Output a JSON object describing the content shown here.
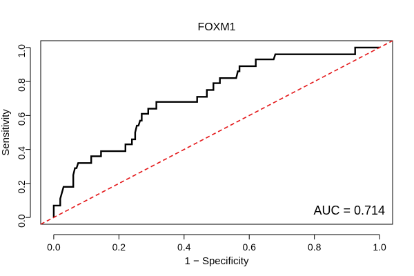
{
  "chart_data": {
    "type": "line",
    "title": "FOXM1",
    "xlabel": "1 − Specificity",
    "ylabel": "Sensitivity",
    "xlim": [
      -0.04,
      1.04
    ],
    "ylim": [
      -0.04,
      1.04
    ],
    "x_ticks": [
      "0.0",
      "0.2",
      "0.4",
      "0.6",
      "0.8",
      "1.0"
    ],
    "y_ticks": [
      "0.0",
      "0.2",
      "0.4",
      "0.6",
      "0.8",
      "1.0"
    ],
    "x_tick_values": [
      0,
      0.2,
      0.4,
      0.6,
      0.8,
      1.0
    ],
    "y_tick_values": [
      0,
      0.2,
      0.4,
      0.6,
      0.8,
      1.0
    ],
    "annotation": "AUC = 0.714",
    "grid": false,
    "series": [
      {
        "color": "#000000",
        "style": "solid",
        "points": [
          [
            0.0,
            0.0
          ],
          [
            0.0,
            0.07
          ],
          [
            0.02,
            0.07
          ],
          [
            0.02,
            0.11
          ],
          [
            0.03,
            0.18
          ],
          [
            0.06,
            0.18
          ],
          [
            0.06,
            0.25
          ],
          [
            0.065,
            0.29
          ],
          [
            0.07,
            0.29
          ],
          [
            0.075,
            0.32
          ],
          [
            0.115,
            0.32
          ],
          [
            0.115,
            0.36
          ],
          [
            0.145,
            0.36
          ],
          [
            0.145,
            0.39
          ],
          [
            0.22,
            0.39
          ],
          [
            0.22,
            0.43
          ],
          [
            0.24,
            0.43
          ],
          [
            0.24,
            0.46
          ],
          [
            0.25,
            0.46
          ],
          [
            0.25,
            0.5
          ],
          [
            0.255,
            0.54
          ],
          [
            0.26,
            0.54
          ],
          [
            0.265,
            0.57
          ],
          [
            0.27,
            0.57
          ],
          [
            0.27,
            0.61
          ],
          [
            0.29,
            0.61
          ],
          [
            0.29,
            0.64
          ],
          [
            0.315,
            0.64
          ],
          [
            0.315,
            0.68
          ],
          [
            0.44,
            0.68
          ],
          [
            0.44,
            0.71
          ],
          [
            0.47,
            0.71
          ],
          [
            0.47,
            0.75
          ],
          [
            0.49,
            0.75
          ],
          [
            0.49,
            0.79
          ],
          [
            0.51,
            0.79
          ],
          [
            0.51,
            0.82
          ],
          [
            0.56,
            0.82
          ],
          [
            0.565,
            0.86
          ],
          [
            0.57,
            0.86
          ],
          [
            0.57,
            0.89
          ],
          [
            0.62,
            0.89
          ],
          [
            0.62,
            0.93
          ],
          [
            0.675,
            0.93
          ],
          [
            0.68,
            0.96
          ],
          [
            0.925,
            0.96
          ],
          [
            0.925,
            1.0
          ],
          [
            1.0,
            1.0
          ]
        ]
      },
      {
        "color": "#e41a1c",
        "style": "dashed",
        "points": [
          [
            -0.04,
            -0.04
          ],
          [
            1.04,
            1.04
          ]
        ]
      }
    ]
  }
}
